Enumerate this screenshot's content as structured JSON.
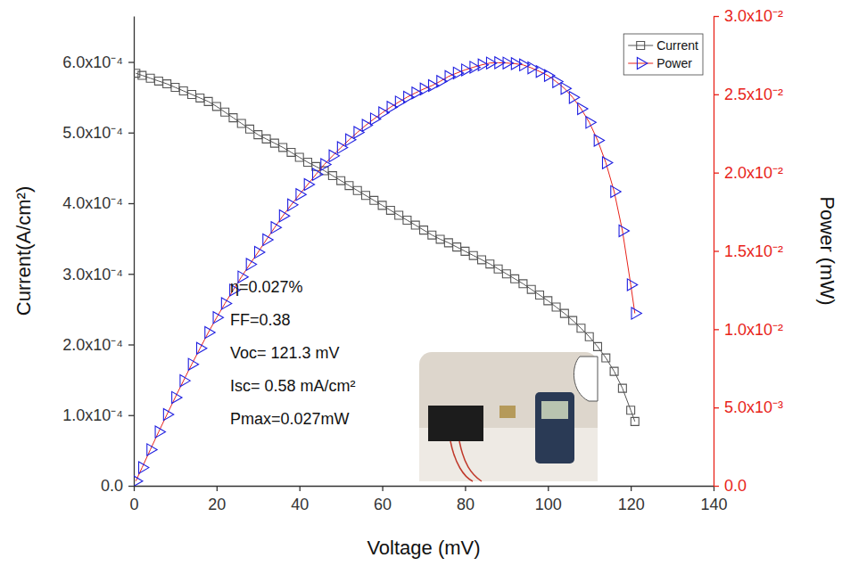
{
  "chart_data": {
    "type": "line",
    "x_label": "Voltage (mV)",
    "y_label": "Current(A/cm²)",
    "y2_label": "Power (mW)",
    "xlim": [
      0,
      140
    ],
    "xticks": [
      0,
      20,
      40,
      60,
      80,
      100,
      120,
      140
    ],
    "ylim": [
      0,
      0.000665
    ],
    "yticks": [
      {
        "value": 0,
        "label": "0.0"
      },
      {
        "value": 0.0001,
        "label": "1.0x10⁻⁴"
      },
      {
        "value": 0.0002,
        "label": "2.0x10⁻⁴"
      },
      {
        "value": 0.0003,
        "label": "3.0x10⁻⁴"
      },
      {
        "value": 0.0004,
        "label": "4.0x10⁻⁴"
      },
      {
        "value": 0.0005,
        "label": "5.0x10⁻⁴"
      },
      {
        "value": 0.0006,
        "label": "6.0x10⁻⁴"
      }
    ],
    "y2lim": [
      0,
      0.03
    ],
    "y2ticks": [
      {
        "value": 0,
        "label": "0.0"
      },
      {
        "value": 0.005,
        "label": "5.0x10⁻³"
      },
      {
        "value": 0.01,
        "label": "1.0x10⁻²"
      },
      {
        "value": 0.015,
        "label": "1.5x10⁻²"
      },
      {
        "value": 0.02,
        "label": "2.0x10⁻²"
      },
      {
        "value": 0.025,
        "label": "2.5x10⁻²"
      },
      {
        "value": 0.03,
        "label": "3.0x10⁻²"
      }
    ],
    "grid": false,
    "legend": "upper right",
    "annotations": [
      "η=0.027%",
      "FF=0.38",
      "Voc= 121.3 mV",
      "Isc= 0.58 mA/cm²",
      "Pmax=0.027mW"
    ],
    "x": [
      0.5,
      2,
      4,
      6,
      8,
      10,
      12,
      14,
      16,
      18,
      20,
      22,
      24,
      26,
      28,
      30,
      32,
      34,
      36,
      38,
      40,
      42,
      44,
      46,
      48,
      50,
      52,
      54,
      56,
      58,
      60,
      62,
      64,
      66,
      68,
      70,
      72,
      74,
      76,
      78,
      80,
      82,
      84,
      86,
      88,
      90,
      92,
      94,
      96,
      98,
      100,
      102,
      104,
      106,
      108,
      110,
      112,
      114,
      116,
      118,
      120,
      121
    ],
    "series": [
      {
        "name": "Current",
        "color": "#555555",
        "marker": "square",
        "line_style": "solid",
        "values": [
          0.000584,
          0.000581,
          0.000577,
          0.000573,
          0.000569,
          0.000564,
          0.000559,
          0.000554,
          0.000549,
          0.000544,
          0.000537,
          0.000529,
          0.000521,
          0.000513,
          0.000505,
          0.000497,
          0.000491,
          0.000485,
          0.000479,
          0.000472,
          0.000465,
          0.000458,
          0.000452,
          0.000446,
          0.000439,
          0.000432,
          0.000425,
          0.000418,
          0.000411,
          0.000404,
          0.000397,
          0.00039,
          0.000383,
          0.000376,
          0.000369,
          0.000362,
          0.000355,
          0.000349,
          0.000344,
          0.000338,
          0.000332,
          0.000326,
          0.00032,
          0.000314,
          0.000307,
          0.0003,
          0.000293,
          0.000286,
          0.000278,
          0.00027,
          0.000262,
          0.000253,
          0.000244,
          0.000234,
          0.000223,
          0.000211,
          0.000197,
          0.000181,
          0.000162,
          0.000138,
          0.000107,
          9.1e-05
        ]
      },
      {
        "name": "Power",
        "color": "#1f1fe0",
        "marker": "triangle",
        "line_style": "solid",
        "axis": "y2",
        "values": [
          0.0003,
          0.00116,
          0.00231,
          0.00344,
          0.00455,
          0.00564,
          0.00671,
          0.00776,
          0.00878,
          0.00979,
          0.01074,
          0.01164,
          0.0125,
          0.01334,
          0.01414,
          0.01491,
          0.01571,
          0.01649,
          0.01724,
          0.01794,
          0.0186,
          0.01924,
          0.01989,
          0.02052,
          0.02107,
          0.0216,
          0.0221,
          0.02257,
          0.02302,
          0.02343,
          0.02382,
          0.02418,
          0.02451,
          0.02482,
          0.02509,
          0.02534,
          0.02556,
          0.02583,
          0.02614,
          0.02636,
          0.02656,
          0.02673,
          0.02688,
          0.027,
          0.02702,
          0.027,
          0.02696,
          0.02688,
          0.02669,
          0.02646,
          0.0262,
          0.02581,
          0.02538,
          0.0248,
          0.02408,
          0.02321,
          0.02206,
          0.02063,
          0.01879,
          0.01628,
          0.01284,
          0.01101
        ]
      }
    ]
  }
}
